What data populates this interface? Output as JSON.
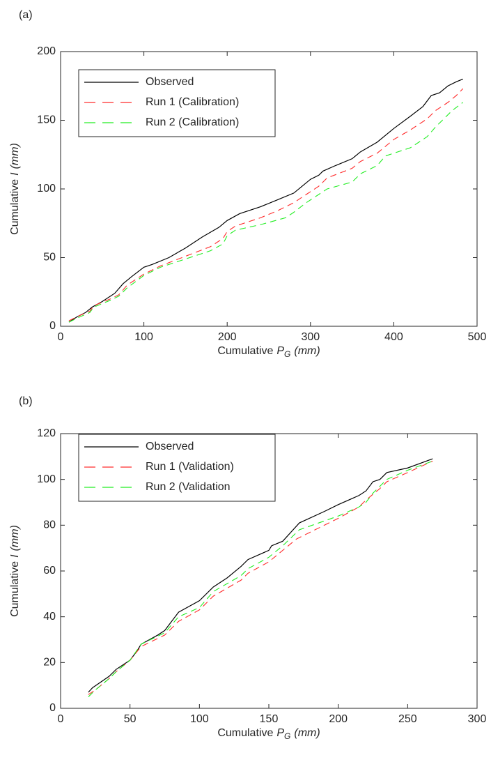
{
  "chart_data": [
    {
      "type": "line",
      "panel_label": "(a)",
      "x_label": {
        "text": "Cumulative",
        "symbol": "P",
        "subscript": "G",
        "unit": "(mm)"
      },
      "y_label": {
        "text": "Cumulative",
        "symbol": "I",
        "unit": "(mm)"
      },
      "xlim": [
        0,
        500
      ],
      "xticks": [
        0,
        100,
        200,
        300,
        400,
        500
      ],
      "ylim": [
        0,
        200
      ],
      "yticks": [
        0,
        50,
        100,
        150,
        200
      ],
      "legend": "northwest",
      "series": [
        {
          "name": "Observed",
          "color": "#000000",
          "dash": "solid",
          "x": [
            10,
            20,
            30,
            38,
            50,
            65,
            75,
            85,
            100,
            110,
            130,
            150,
            170,
            190,
            200,
            215,
            240,
            260,
            280,
            290,
            300,
            310,
            315,
            330,
            350,
            360,
            380,
            400,
            420,
            435,
            445,
            455,
            465,
            475,
            483
          ],
          "values": [
            3,
            7,
            10,
            14,
            18,
            24,
            31,
            36,
            43,
            45,
            50,
            57,
            65,
            72,
            77,
            82,
            87,
            92,
            97,
            102,
            107,
            110,
            113,
            117,
            122,
            127,
            134,
            144,
            153,
            160,
            168,
            170,
            175,
            178,
            180
          ]
        },
        {
          "name": "Run 1 (Calibration)",
          "color": "#ff2a2a",
          "dash": "dashed",
          "x": [
            10,
            20,
            35,
            40,
            60,
            70,
            80,
            100,
            120,
            150,
            180,
            195,
            200,
            210,
            240,
            260,
            280,
            295,
            310,
            320,
            350,
            360,
            380,
            400,
            420,
            440,
            450,
            465,
            475,
            483
          ],
          "values": [
            4,
            7,
            11,
            15,
            20,
            23,
            30,
            38,
            44,
            51,
            58,
            64,
            69,
            73,
            79,
            84,
            90,
            96,
            102,
            108,
            115,
            120,
            126,
            136,
            143,
            151,
            157,
            163,
            168,
            173
          ]
        },
        {
          "name": "Run 2 (Calibration)",
          "color": "#22ee22",
          "dash": "dashed",
          "x": [
            10,
            20,
            35,
            40,
            60,
            70,
            80,
            100,
            120,
            150,
            180,
            195,
            200,
            210,
            240,
            270,
            280,
            295,
            310,
            320,
            350,
            360,
            380,
            390,
            420,
            440,
            450,
            460,
            470,
            483
          ],
          "values": [
            3,
            6,
            10,
            14,
            19,
            22,
            28,
            37,
            43,
            49,
            55,
            60,
            66,
            70,
            74,
            79,
            83,
            90,
            96,
            100,
            105,
            111,
            117,
            124,
            130,
            138,
            145,
            151,
            157,
            163
          ]
        }
      ]
    },
    {
      "type": "line",
      "panel_label": "(b)",
      "x_label": {
        "text": "Cumulative",
        "symbol": "P",
        "subscript": "G",
        "unit": "(mm)"
      },
      "y_label": {
        "text": "Cumulative",
        "symbol": "I",
        "unit": "(mm)"
      },
      "xlim": [
        0,
        300
      ],
      "xticks": [
        0,
        50,
        100,
        150,
        200,
        250,
        300
      ],
      "ylim": [
        0,
        120
      ],
      "yticks": [
        0,
        20,
        40,
        60,
        80,
        100,
        120
      ],
      "legend": "northwest",
      "series": [
        {
          "name": "Observed",
          "color": "#000000",
          "dash": "solid",
          "x": [
            20,
            23,
            35,
            40,
            50,
            55,
            58,
            70,
            75,
            85,
            100,
            110,
            120,
            130,
            135,
            150,
            152,
            160,
            172,
            190,
            200,
            215,
            220,
            225,
            230,
            235,
            250,
            268
          ],
          "values": [
            7,
            9,
            14,
            17,
            21,
            25,
            28,
            32,
            34,
            42,
            47,
            53,
            57,
            62,
            65,
            69,
            71,
            73,
            81,
            86,
            89,
            93,
            95,
            99,
            100,
            103,
            105,
            109
          ]
        },
        {
          "name": "Run 1 (Validation)",
          "color": "#ff2a2a",
          "dash": "dashed",
          "x": [
            20,
            25,
            35,
            40,
            50,
            58,
            75,
            85,
            100,
            110,
            130,
            135,
            150,
            170,
            200,
            215,
            220,
            230,
            235,
            250,
            268
          ],
          "values": [
            6,
            8,
            13,
            16,
            21,
            27,
            32,
            38,
            43,
            49,
            56,
            59,
            64,
            74,
            83,
            88,
            91,
            96,
            99,
            103,
            108
          ]
        },
        {
          "name": "Run 2 (Validation",
          "color": "#22ee22",
          "dash": "dashed",
          "x": [
            20,
            25,
            35,
            40,
            50,
            58,
            75,
            85,
            100,
            110,
            130,
            135,
            150,
            160,
            172,
            200,
            215,
            220,
            225,
            235,
            250,
            268
          ],
          "values": [
            5,
            8,
            13,
            16,
            21,
            28,
            33,
            40,
            44,
            51,
            58,
            61,
            66,
            71,
            78,
            84,
            88,
            90,
            94,
            100,
            104,
            108
          ]
        }
      ]
    }
  ]
}
